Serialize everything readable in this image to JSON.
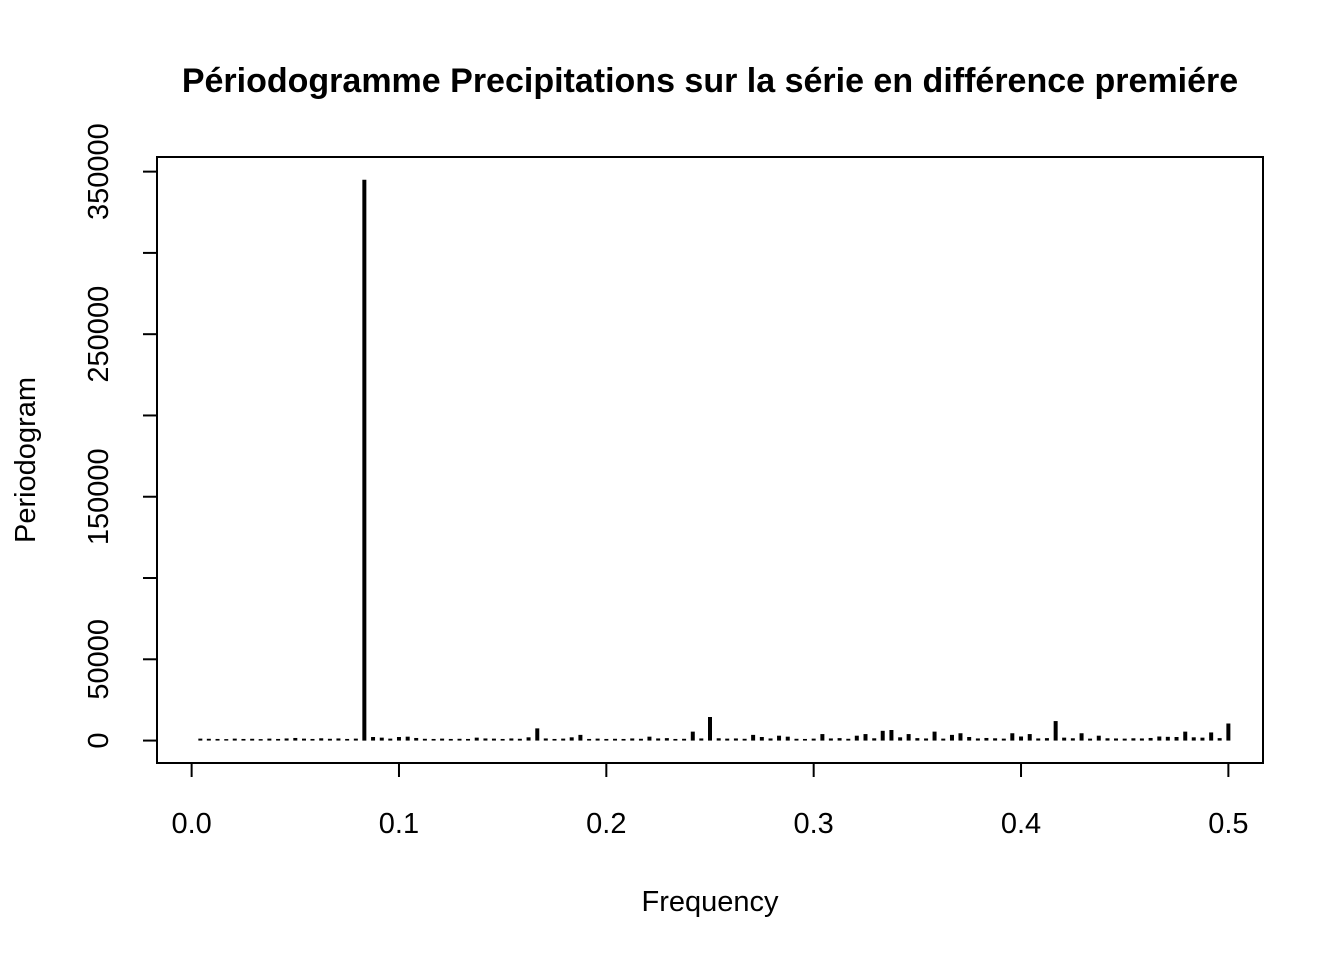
{
  "chart_data": {
    "type": "bar",
    "title": "Périodogramme Precipitations sur la série en différence premiére",
    "xlabel": "Frequency",
    "ylabel": "Periodogram",
    "xlim": [
      -0.0167,
      0.5167
    ],
    "ylim": [
      -13800,
      359000
    ],
    "xticks": [
      0.0,
      0.1,
      0.2,
      0.3,
      0.4,
      0.5
    ],
    "xtick_labels": [
      "0.0",
      "0.1",
      "0.2",
      "0.3",
      "0.4",
      "0.5"
    ],
    "yticks": [
      0,
      50000,
      100000,
      150000,
      200000,
      250000,
      300000,
      350000
    ],
    "ytick_labels": [
      "0",
      "50000",
      "",
      "150000",
      "",
      "250000",
      "",
      "350000"
    ],
    "grid": false,
    "bars": [
      {
        "x": 0.0042,
        "y": 1200
      },
      {
        "x": 0.0083,
        "y": 1100
      },
      {
        "x": 0.0125,
        "y": 1000
      },
      {
        "x": 0.0167,
        "y": 900
      },
      {
        "x": 0.0208,
        "y": 1200
      },
      {
        "x": 0.025,
        "y": 1000
      },
      {
        "x": 0.0292,
        "y": 1100
      },
      {
        "x": 0.0333,
        "y": 900
      },
      {
        "x": 0.0375,
        "y": 1200
      },
      {
        "x": 0.0417,
        "y": 1000
      },
      {
        "x": 0.0458,
        "y": 1300
      },
      {
        "x": 0.05,
        "y": 1600
      },
      {
        "x": 0.0542,
        "y": 1200
      },
      {
        "x": 0.0583,
        "y": 1000
      },
      {
        "x": 0.0625,
        "y": 1400
      },
      {
        "x": 0.0667,
        "y": 1100
      },
      {
        "x": 0.0708,
        "y": 1300
      },
      {
        "x": 0.075,
        "y": 1000
      },
      {
        "x": 0.0792,
        "y": 1200
      },
      {
        "x": 0.0833,
        "y": 345000
      },
      {
        "x": 0.0875,
        "y": 2200
      },
      {
        "x": 0.0917,
        "y": 1800
      },
      {
        "x": 0.0958,
        "y": 1200
      },
      {
        "x": 0.1,
        "y": 2200
      },
      {
        "x": 0.1042,
        "y": 2400
      },
      {
        "x": 0.1083,
        "y": 1600
      },
      {
        "x": 0.1125,
        "y": 1100
      },
      {
        "x": 0.1167,
        "y": 1000
      },
      {
        "x": 0.1208,
        "y": 1200
      },
      {
        "x": 0.125,
        "y": 1000
      },
      {
        "x": 0.1292,
        "y": 1100
      },
      {
        "x": 0.1333,
        "y": 1000
      },
      {
        "x": 0.1375,
        "y": 1800
      },
      {
        "x": 0.1417,
        "y": 1300
      },
      {
        "x": 0.1458,
        "y": 1200
      },
      {
        "x": 0.15,
        "y": 1000
      },
      {
        "x": 0.1542,
        "y": 1300
      },
      {
        "x": 0.1583,
        "y": 1100
      },
      {
        "x": 0.1625,
        "y": 2000
      },
      {
        "x": 0.1667,
        "y": 7500
      },
      {
        "x": 0.1708,
        "y": 1300
      },
      {
        "x": 0.175,
        "y": 1000
      },
      {
        "x": 0.1792,
        "y": 1200
      },
      {
        "x": 0.1833,
        "y": 2000
      },
      {
        "x": 0.1875,
        "y": 3500
      },
      {
        "x": 0.1917,
        "y": 1000
      },
      {
        "x": 0.1958,
        "y": 1200
      },
      {
        "x": 0.2,
        "y": 1000
      },
      {
        "x": 0.2042,
        "y": 1100
      },
      {
        "x": 0.2083,
        "y": 1000
      },
      {
        "x": 0.2125,
        "y": 1300
      },
      {
        "x": 0.2167,
        "y": 1100
      },
      {
        "x": 0.2208,
        "y": 2400
      },
      {
        "x": 0.225,
        "y": 1300
      },
      {
        "x": 0.2292,
        "y": 1500
      },
      {
        "x": 0.2333,
        "y": 1000
      },
      {
        "x": 0.2375,
        "y": 1100
      },
      {
        "x": 0.2417,
        "y": 5500
      },
      {
        "x": 0.2458,
        "y": 1300
      },
      {
        "x": 0.25,
        "y": 14500
      },
      {
        "x": 0.2542,
        "y": 1400
      },
      {
        "x": 0.2583,
        "y": 1200
      },
      {
        "x": 0.2625,
        "y": 1300
      },
      {
        "x": 0.2667,
        "y": 1100
      },
      {
        "x": 0.2708,
        "y": 3500
      },
      {
        "x": 0.275,
        "y": 2200
      },
      {
        "x": 0.2792,
        "y": 1300
      },
      {
        "x": 0.2833,
        "y": 3000
      },
      {
        "x": 0.2875,
        "y": 2400
      },
      {
        "x": 0.2917,
        "y": 1100
      },
      {
        "x": 0.2958,
        "y": 1000
      },
      {
        "x": 0.3,
        "y": 1200
      },
      {
        "x": 0.3042,
        "y": 4000
      },
      {
        "x": 0.3083,
        "y": 1300
      },
      {
        "x": 0.3125,
        "y": 1500
      },
      {
        "x": 0.3167,
        "y": 1100
      },
      {
        "x": 0.3208,
        "y": 3000
      },
      {
        "x": 0.325,
        "y": 4000
      },
      {
        "x": 0.3292,
        "y": 1400
      },
      {
        "x": 0.3333,
        "y": 6000
      },
      {
        "x": 0.3375,
        "y": 6500
      },
      {
        "x": 0.3417,
        "y": 2000
      },
      {
        "x": 0.3458,
        "y": 4000
      },
      {
        "x": 0.35,
        "y": 1500
      },
      {
        "x": 0.3542,
        "y": 1300
      },
      {
        "x": 0.3583,
        "y": 5500
      },
      {
        "x": 0.3625,
        "y": 1200
      },
      {
        "x": 0.3667,
        "y": 3500
      },
      {
        "x": 0.3708,
        "y": 4500
      },
      {
        "x": 0.375,
        "y": 2200
      },
      {
        "x": 0.3792,
        "y": 1300
      },
      {
        "x": 0.3833,
        "y": 1600
      },
      {
        "x": 0.3875,
        "y": 1400
      },
      {
        "x": 0.3917,
        "y": 1200
      },
      {
        "x": 0.3958,
        "y": 4500
      },
      {
        "x": 0.4,
        "y": 2500
      },
      {
        "x": 0.4042,
        "y": 4000
      },
      {
        "x": 0.4083,
        "y": 1300
      },
      {
        "x": 0.4125,
        "y": 1500
      },
      {
        "x": 0.4167,
        "y": 12000
      },
      {
        "x": 0.4208,
        "y": 1800
      },
      {
        "x": 0.425,
        "y": 1400
      },
      {
        "x": 0.4292,
        "y": 4500
      },
      {
        "x": 0.4333,
        "y": 1200
      },
      {
        "x": 0.4375,
        "y": 3000
      },
      {
        "x": 0.4417,
        "y": 1400
      },
      {
        "x": 0.4458,
        "y": 1300
      },
      {
        "x": 0.45,
        "y": 1200
      },
      {
        "x": 0.4542,
        "y": 1400
      },
      {
        "x": 0.4583,
        "y": 1300
      },
      {
        "x": 0.4625,
        "y": 1600
      },
      {
        "x": 0.4667,
        "y": 2500
      },
      {
        "x": 0.4708,
        "y": 2300
      },
      {
        "x": 0.475,
        "y": 2200
      },
      {
        "x": 0.4792,
        "y": 5500
      },
      {
        "x": 0.4833,
        "y": 2000
      },
      {
        "x": 0.4875,
        "y": 1800
      },
      {
        "x": 0.4917,
        "y": 5000
      },
      {
        "x": 0.4958,
        "y": 1500
      },
      {
        "x": 0.5,
        "y": 10500
      }
    ]
  }
}
